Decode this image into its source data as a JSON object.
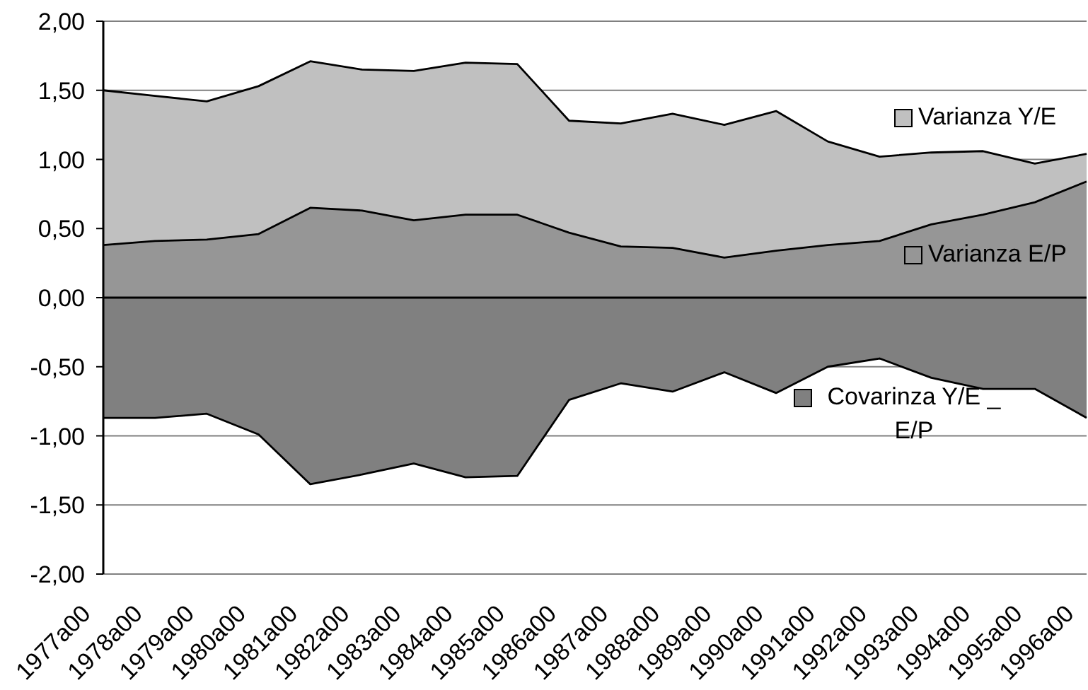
{
  "chart_data": {
    "type": "area",
    "categories": [
      "1977a00",
      "1978a00",
      "1979a00",
      "1980a00",
      "1981a00",
      "1982a00",
      "1983a00",
      "1984a00",
      "1985a00",
      "1986a00",
      "1987a00",
      "1988a00",
      "1989a00",
      "1990a00",
      "1991a00",
      "1992a00",
      "1993a00",
      "1994a00",
      "1995a00",
      "1996a00"
    ],
    "series": [
      {
        "name": "Varianza Y/E",
        "color": "#c0c0c0",
        "values": [
          1.5,
          1.46,
          1.42,
          1.53,
          1.71,
          1.65,
          1.64,
          1.7,
          1.69,
          1.28,
          1.26,
          1.33,
          1.25,
          1.35,
          1.13,
          1.02,
          1.05,
          1.06,
          0.97,
          1.04
        ]
      },
      {
        "name": "Varianza E/P",
        "color": "#969696",
        "values": [
          0.38,
          0.41,
          0.42,
          0.46,
          0.65,
          0.63,
          0.56,
          0.6,
          0.6,
          0.47,
          0.37,
          0.36,
          0.29,
          0.34,
          0.38,
          0.41,
          0.53,
          0.6,
          0.69,
          0.84
        ]
      },
      {
        "name": "Covarinza Y/E _ E/P",
        "color": "#808080",
        "values": [
          -0.87,
          -0.87,
          -0.84,
          -0.99,
          -1.35,
          -1.28,
          -1.2,
          -1.3,
          -1.29,
          -0.74,
          -0.62,
          -0.68,
          -0.54,
          -0.69,
          -0.5,
          -0.44,
          -0.58,
          -0.66,
          -0.66,
          -0.87
        ]
      }
    ],
    "ylim": [
      -2,
      2
    ],
    "yticks": [
      {
        "value": -2,
        "label": "-2,00"
      },
      {
        "value": -1.5,
        "label": "-1,50"
      },
      {
        "value": -1,
        "label": "-1,00"
      },
      {
        "value": -0.5,
        "label": "-0,50"
      },
      {
        "value": 0,
        "label": "0,00"
      },
      {
        "value": 0.5,
        "label": "0,50"
      },
      {
        "value": 1,
        "label": "1,00"
      },
      {
        "value": 1.5,
        "label": "1,50"
      },
      {
        "value": 2,
        "label": "2,00"
      }
    ],
    "ref_lines": [
      {
        "axis": "y",
        "value": 0,
        "color": "#000000"
      }
    ],
    "grid": "y",
    "legend": "right"
  }
}
